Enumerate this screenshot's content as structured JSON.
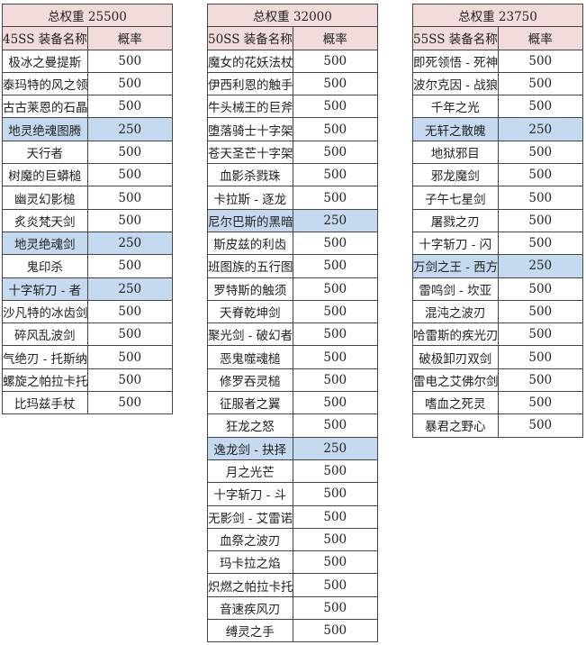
{
  "colors": {
    "header_bg": "#f2dcdb",
    "highlight_bg": "#c5d9f1"
  },
  "tables": [
    {
      "total": "总权重 25500",
      "name_header": "45SS 装备名称",
      "rate_header": "概率",
      "rows": [
        {
          "name": "极冰之曼提斯",
          "rate": "500",
          "highlight": false
        },
        {
          "name": "泰玛特的风之领域",
          "rate": "500",
          "highlight": false
        },
        {
          "name": "古古莱恩的石晶图腾",
          "rate": "500",
          "highlight": false
        },
        {
          "name": "地灵绝魂图腾",
          "rate": "250",
          "highlight": true
        },
        {
          "name": "天行者",
          "rate": "500",
          "highlight": false
        },
        {
          "name": "树魔的巨蟒槌",
          "rate": "500",
          "highlight": false
        },
        {
          "name": "幽灵幻影槌",
          "rate": "500",
          "highlight": false
        },
        {
          "name": "炙炎梵天剑",
          "rate": "500",
          "highlight": false
        },
        {
          "name": "地灵绝魂剑",
          "rate": "250",
          "highlight": true
        },
        {
          "name": "鬼印杀",
          "rate": "500",
          "highlight": false
        },
        {
          "name": "十字斩刀 - 者",
          "rate": "250",
          "highlight": true
        },
        {
          "name": "沙凡特的冰齿剑",
          "rate": "500",
          "highlight": false
        },
        {
          "name": "碎风乱波剑",
          "rate": "500",
          "highlight": false
        },
        {
          "name": "气绝刃 - 托斯纳罗根",
          "rate": "500",
          "highlight": false
        },
        {
          "name": "螺旋之帕拉卡托",
          "rate": "500",
          "highlight": false
        },
        {
          "name": "比玛兹手杖",
          "rate": "500",
          "highlight": false
        }
      ]
    },
    {
      "total": "总权重 32000",
      "name_header": "50SS 装备名称",
      "rate_header": "概率",
      "rows": [
        {
          "name": "魔女的花妖法杖",
          "rate": "500",
          "highlight": false
        },
        {
          "name": "伊西利恩的触手",
          "rate": "500",
          "highlight": false
        },
        {
          "name": "牛头械王的巨斧",
          "rate": "500",
          "highlight": false
        },
        {
          "name": "堕落骑士十字架",
          "rate": "500",
          "highlight": false
        },
        {
          "name": "苍天圣芒十字架",
          "rate": "500",
          "highlight": false
        },
        {
          "name": "血影杀戮珠",
          "rate": "500",
          "highlight": false
        },
        {
          "name": "卡拉斯 - 逐龙",
          "rate": "500",
          "highlight": false
        },
        {
          "name": "尼尔巴斯的黑暗战镰",
          "rate": "250",
          "highlight": true
        },
        {
          "name": "斯皮兹的利齿",
          "rate": "500",
          "highlight": false
        },
        {
          "name": "班图族的五行图腾",
          "rate": "500",
          "highlight": false
        },
        {
          "name": "罗特斯的触须",
          "rate": "500",
          "highlight": false
        },
        {
          "name": "天脊乾坤剑",
          "rate": "500",
          "highlight": false
        },
        {
          "name": "聚光剑 - 破幻者",
          "rate": "500",
          "highlight": false
        },
        {
          "name": "恶鬼噬魂槌",
          "rate": "500",
          "highlight": false
        },
        {
          "name": "修罗吞灵槌",
          "rate": "500",
          "highlight": false
        },
        {
          "name": "征服者之翼",
          "rate": "500",
          "highlight": false
        },
        {
          "name": "狂龙之怒",
          "rate": "500",
          "highlight": false
        },
        {
          "name": "逸龙剑 - 抉择",
          "rate": "250",
          "highlight": true
        },
        {
          "name": "月之光芒",
          "rate": "500",
          "highlight": false
        },
        {
          "name": "十字斩刀 - 斗",
          "rate": "500",
          "highlight": false
        },
        {
          "name": "无影剑 - 艾雷诺",
          "rate": "500",
          "highlight": false
        },
        {
          "name": "血祭之波刃",
          "rate": "500",
          "highlight": false
        },
        {
          "name": "玛卡拉之焰",
          "rate": "500",
          "highlight": false
        },
        {
          "name": "炽燃之帕拉卡托",
          "rate": "500",
          "highlight": false
        },
        {
          "name": "音速疾风刃",
          "rate": "500",
          "highlight": false
        },
        {
          "name": "缚灵之手",
          "rate": "500",
          "highlight": false
        }
      ]
    },
    {
      "total": "总权重 23750",
      "name_header": "55SS 装备名称",
      "rate_header": "概率",
      "rows": [
        {
          "name": "即死领悟 - 死神之镰",
          "rate": "500",
          "highlight": false
        },
        {
          "name": "波尔克因 - 战狼",
          "rate": "500",
          "highlight": false
        },
        {
          "name": "千年之光",
          "rate": "500",
          "highlight": false
        },
        {
          "name": "无轩之散魄",
          "rate": "250",
          "highlight": true
        },
        {
          "name": "地狱邪目",
          "rate": "500",
          "highlight": false
        },
        {
          "name": "邪龙魔剑",
          "rate": "500",
          "highlight": false
        },
        {
          "name": "子午七星剑",
          "rate": "500",
          "highlight": false
        },
        {
          "name": "屠戮之刃",
          "rate": "500",
          "highlight": false
        },
        {
          "name": "十字斩刀 - 闪",
          "rate": "500",
          "highlight": false
        },
        {
          "name": "万剑之王 - 西方之焰",
          "rate": "250",
          "highlight": true
        },
        {
          "name": "雷鸣剑 - 坎亚",
          "rate": "500",
          "highlight": false
        },
        {
          "name": "混沌之波刃",
          "rate": "500",
          "highlight": false
        },
        {
          "name": "哈雷斯的疾光刃",
          "rate": "500",
          "highlight": false
        },
        {
          "name": "破极卸刃双剑",
          "rate": "500",
          "highlight": false
        },
        {
          "name": "雷电之艾佛尔剑",
          "rate": "500",
          "highlight": false
        },
        {
          "name": "嗜血之死灵",
          "rate": "500",
          "highlight": false
        },
        {
          "name": "暴君之野心",
          "rate": "500",
          "highlight": false
        }
      ]
    }
  ]
}
